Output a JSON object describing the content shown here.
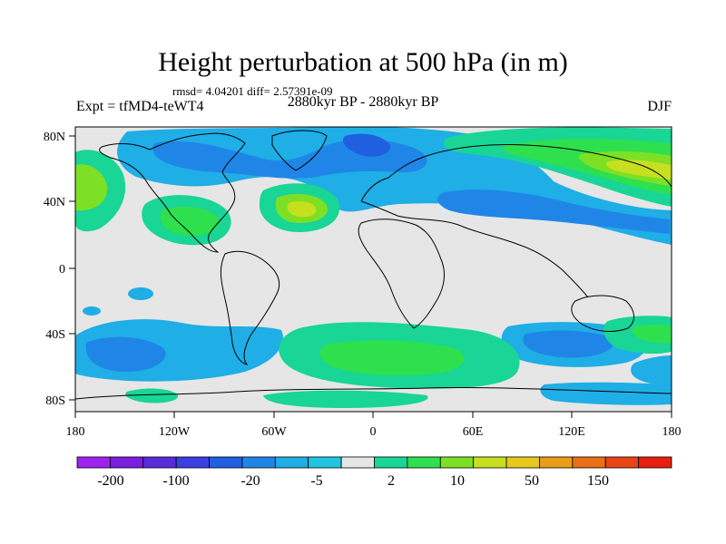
{
  "header": {
    "title": "Height perturbation at 500 hPa (in m)",
    "stats": "rmsd= 4.04201 diff= 2.57391e-09",
    "experiment": "Expt = tfMD4-teWT4",
    "period": "2880kyr BP - 2880kyr BP",
    "season": "DJF"
  },
  "axes": {
    "lat_labels": [
      "80N",
      "40N",
      "0",
      "40S",
      "80S"
    ],
    "lon_labels": [
      "180",
      "120W",
      "60W",
      "0",
      "60E",
      "120E",
      "180"
    ]
  },
  "colorbar": {
    "labels": [
      "-200",
      "-100",
      "-20",
      "-5",
      "2",
      "10",
      "50",
      "150"
    ],
    "colors": [
      "#a020f0",
      "#7a1ee0",
      "#5a2bd8",
      "#3b3ee0",
      "#1f5fe0",
      "#1f86e8",
      "#1faee6",
      "#20c4e0",
      "#e6e6e6",
      "#19d596",
      "#2ee04e",
      "#7ee024",
      "#c6e020",
      "#e8c81c",
      "#e89e18",
      "#e87016",
      "#e84414",
      "#e81e10"
    ]
  },
  "colors": {
    "negative_light": "#1faee6",
    "negative_mid": "#1f86e8",
    "negative_dark": "#1f5fe0",
    "positive_light": "#19d596",
    "positive_mid": "#2ee04e",
    "positive_strong": "#7ee024",
    "positive_max": "#c6e020",
    "neutral": "#e6e6e6"
  }
}
